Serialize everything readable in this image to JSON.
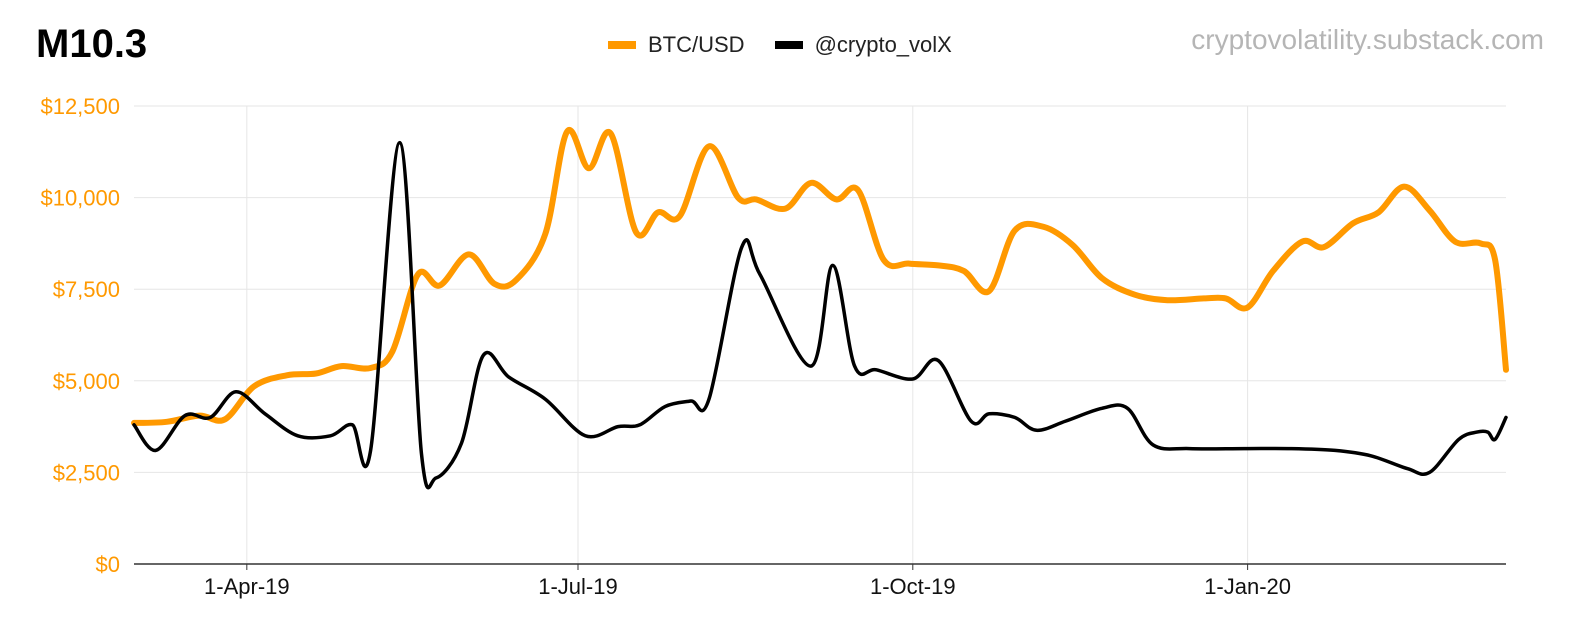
{
  "header": {
    "title": "M10.3",
    "watermark": "cryptovolatility.substack.com"
  },
  "legend": [
    {
      "label": "BTC/USD",
      "color": "#FF9900"
    },
    {
      "label": "@crypto_volX",
      "color": "#000000"
    }
  ],
  "chart_data": {
    "type": "line",
    "ylim": [
      0,
      12500
    ],
    "xlim": [
      "2019-03-01",
      "2020-03-12"
    ],
    "grid": true,
    "legend_position": "top-center",
    "y_ticks": [
      {
        "value": 0,
        "label": "$0"
      },
      {
        "value": 2500,
        "label": "$2,500"
      },
      {
        "value": 5000,
        "label": "$5,000"
      },
      {
        "value": 7500,
        "label": "$7,500"
      },
      {
        "value": 10000,
        "label": "$10,000"
      },
      {
        "value": 12500,
        "label": "$12,500"
      }
    ],
    "x_ticks": [
      {
        "date": "2019-04-01",
        "label": "1-Apr-19"
      },
      {
        "date": "2019-07-01",
        "label": "1-Jul-19"
      },
      {
        "date": "2019-10-01",
        "label": "1-Oct-19"
      },
      {
        "date": "2020-01-01",
        "label": "1-Jan-20"
      }
    ],
    "series": [
      {
        "name": "BTC/USD",
        "color": "#FF9900",
        "points": [
          [
            "2019-03-01",
            3850
          ],
          [
            "2019-03-10",
            3880
          ],
          [
            "2019-03-19",
            4050
          ],
          [
            "2019-03-26",
            3950
          ],
          [
            "2019-04-03",
            4850
          ],
          [
            "2019-04-12",
            5150
          ],
          [
            "2019-04-20",
            5200
          ],
          [
            "2019-04-27",
            5400
          ],
          [
            "2019-05-05",
            5350
          ],
          [
            "2019-05-11",
            5800
          ],
          [
            "2019-05-18",
            7900
          ],
          [
            "2019-05-24",
            7600
          ],
          [
            "2019-06-01",
            8450
          ],
          [
            "2019-06-08",
            7650
          ],
          [
            "2019-06-14",
            7750
          ],
          [
            "2019-06-22",
            9000
          ],
          [
            "2019-06-28",
            11800
          ],
          [
            "2019-07-04",
            10800
          ],
          [
            "2019-07-10",
            11750
          ],
          [
            "2019-07-17",
            9050
          ],
          [
            "2019-07-23",
            9600
          ],
          [
            "2019-07-29",
            9500
          ],
          [
            "2019-08-06",
            11400
          ],
          [
            "2019-08-14",
            10000
          ],
          [
            "2019-08-19",
            9950
          ],
          [
            "2019-08-27",
            9700
          ],
          [
            "2019-09-03",
            10400
          ],
          [
            "2019-09-10",
            9950
          ],
          [
            "2019-09-16",
            10200
          ],
          [
            "2019-09-23",
            8300
          ],
          [
            "2019-09-30",
            8200
          ],
          [
            "2019-10-08",
            8150
          ],
          [
            "2019-10-15",
            8000
          ],
          [
            "2019-10-22",
            7450
          ],
          [
            "2019-10-29",
            9100
          ],
          [
            "2019-11-06",
            9200
          ],
          [
            "2019-11-14",
            8700
          ],
          [
            "2019-11-22",
            7800
          ],
          [
            "2019-12-01",
            7350
          ],
          [
            "2019-12-10",
            7200
          ],
          [
            "2019-12-20",
            7250
          ],
          [
            "2019-12-26",
            7250
          ],
          [
            "2020-01-01",
            7000
          ],
          [
            "2020-01-08",
            8000
          ],
          [
            "2020-01-16",
            8800
          ],
          [
            "2020-01-22",
            8650
          ],
          [
            "2020-01-30",
            9300
          ],
          [
            "2020-02-06",
            9600
          ],
          [
            "2020-02-13",
            10300
          ],
          [
            "2020-02-20",
            9650
          ],
          [
            "2020-02-27",
            8800
          ],
          [
            "2020-03-05",
            8750
          ],
          [
            "2020-03-09",
            8300
          ],
          [
            "2020-03-12",
            5300
          ]
        ]
      },
      {
        "name": "@crypto_volX",
        "color": "#000000",
        "points": [
          [
            "2019-03-01",
            3800
          ],
          [
            "2019-03-07",
            3100
          ],
          [
            "2019-03-15",
            4050
          ],
          [
            "2019-03-22",
            4000
          ],
          [
            "2019-03-29",
            4700
          ],
          [
            "2019-04-06",
            4100
          ],
          [
            "2019-04-15",
            3500
          ],
          [
            "2019-04-24",
            3500
          ],
          [
            "2019-04-30",
            3800
          ],
          [
            "2019-05-05",
            3100
          ],
          [
            "2019-05-13",
            11500
          ],
          [
            "2019-05-19",
            3000
          ],
          [
            "2019-05-23",
            2350
          ],
          [
            "2019-05-30",
            3300
          ],
          [
            "2019-06-05",
            5700
          ],
          [
            "2019-06-12",
            5100
          ],
          [
            "2019-06-22",
            4500
          ],
          [
            "2019-07-03",
            3500
          ],
          [
            "2019-07-12",
            3750
          ],
          [
            "2019-07-18",
            3800
          ],
          [
            "2019-07-25",
            4300
          ],
          [
            "2019-08-01",
            4450
          ],
          [
            "2019-08-06",
            4500
          ],
          [
            "2019-08-15",
            8650
          ],
          [
            "2019-08-20",
            7900
          ],
          [
            "2019-09-03",
            5400
          ],
          [
            "2019-09-09",
            8150
          ],
          [
            "2019-09-15",
            5400
          ],
          [
            "2019-09-21",
            5300
          ],
          [
            "2019-10-01",
            5050
          ],
          [
            "2019-10-08",
            5550
          ],
          [
            "2019-10-17",
            3900
          ],
          [
            "2019-10-22",
            4100
          ],
          [
            "2019-10-29",
            4000
          ],
          [
            "2019-11-04",
            3650
          ],
          [
            "2019-11-12",
            3900
          ],
          [
            "2019-11-22",
            4250
          ],
          [
            "2019-11-29",
            4250
          ],
          [
            "2019-12-06",
            3250
          ],
          [
            "2019-12-16",
            3150
          ],
          [
            "2019-12-31",
            3150
          ],
          [
            "2020-01-13",
            3150
          ],
          [
            "2020-01-25",
            3100
          ],
          [
            "2020-02-04",
            2950
          ],
          [
            "2020-02-14",
            2600
          ],
          [
            "2020-02-20",
            2500
          ],
          [
            "2020-02-28",
            3400
          ],
          [
            "2020-03-04",
            3600
          ],
          [
            "2020-03-07",
            3600
          ],
          [
            "2020-03-09",
            3400
          ],
          [
            "2020-03-12",
            4000
          ]
        ]
      }
    ]
  }
}
